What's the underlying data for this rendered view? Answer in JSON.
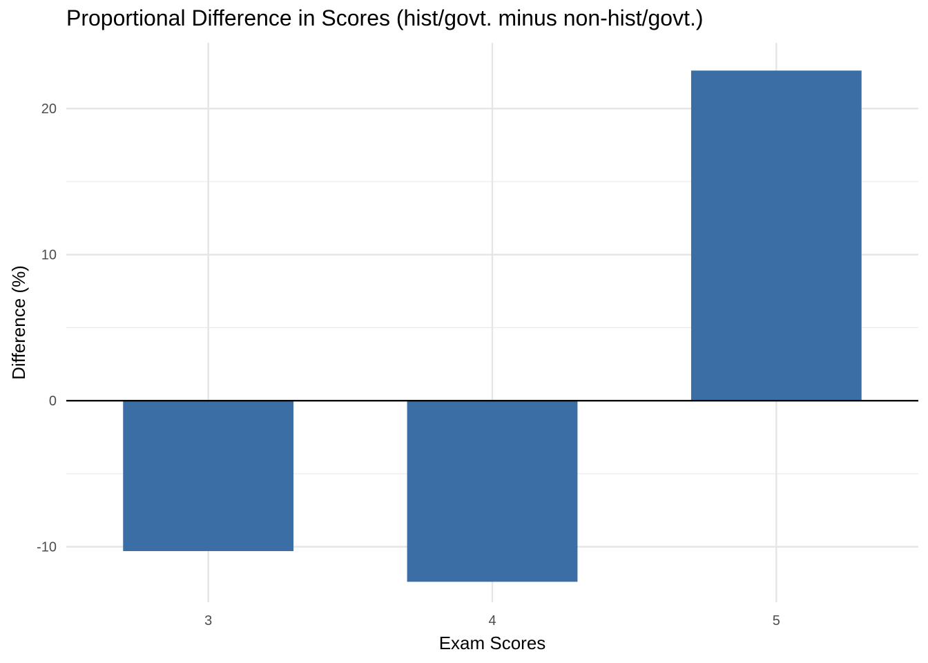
{
  "chart_data": {
    "type": "bar",
    "title": "Proportional Difference in Scores (hist/govt. minus non-hist/govt.)",
    "xlabel": "Exam Scores",
    "ylabel": "Difference (%)",
    "categories": [
      "3",
      "4",
      "5"
    ],
    "values": [
      -10.3,
      -12.4,
      22.6
    ],
    "y_ticks": [
      -10,
      0,
      10,
      20
    ],
    "y_tick_labels": [
      "-10",
      "0",
      "10",
      "20"
    ],
    "ylim": [
      -13.8,
      24.5
    ],
    "grid": true,
    "legend": "none",
    "bar_color": "#3a6ea5",
    "zero_line_color": "#000000"
  }
}
